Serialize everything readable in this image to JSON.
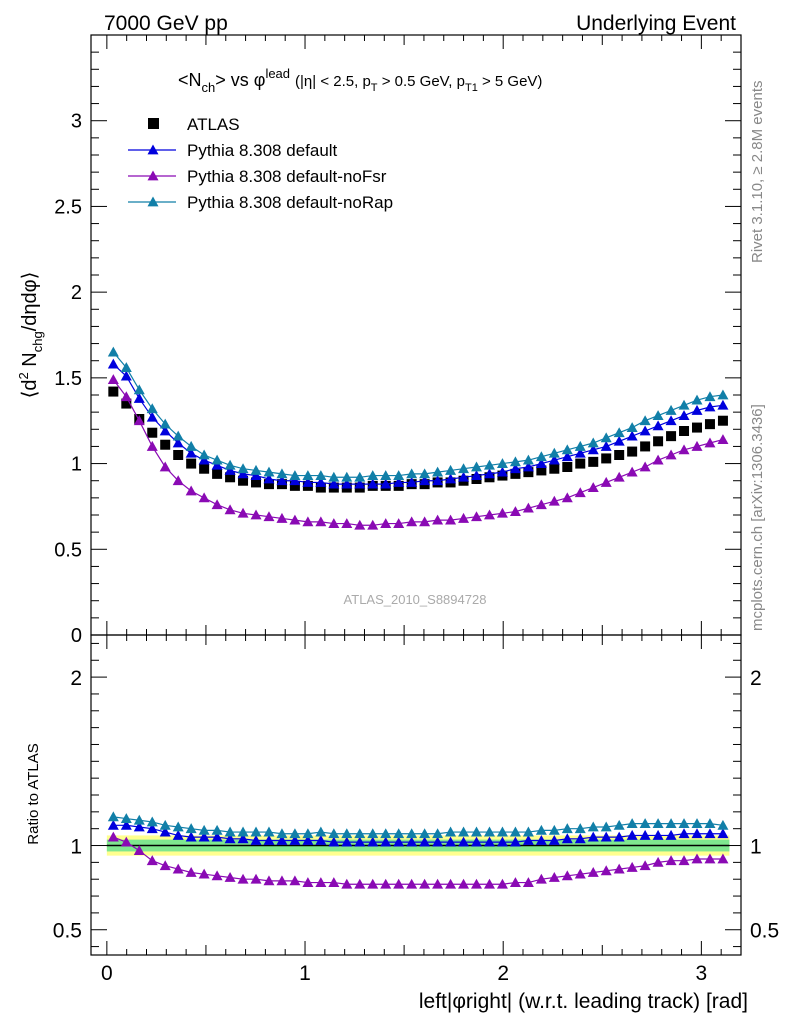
{
  "header": {
    "left": "7000 GeV pp",
    "right": "Underlying Event"
  },
  "side_text": {
    "rivet": "Rivet 3.1.10, ≥ 2.8M events",
    "mcplots": "mcplots.cern.ch [arXiv:1306.3436]"
  },
  "chart_data": {
    "type": "scatter",
    "title": "<Nch> vs φlead (|η| < 2.5, pT > 0.5 GeV, pT1 > 5 GeV)",
    "watermark": "ATLAS_2010_S8894728",
    "ylabel": "⟨d² Nchg/dηdφ⟩",
    "xlabel": "left|φright| (w.r.t. leading track) [rad]",
    "ratio_ylabel": "Ratio to ATLAS",
    "xlim": [
      -0.08,
      3.2
    ],
    "ylim": [
      0,
      3.5
    ],
    "ratio_ylim": [
      0.35,
      2.25
    ],
    "x_ticks": [
      "0",
      "1",
      "2",
      "3"
    ],
    "y_ticks": [
      "0",
      "0.5",
      "1",
      "1.5",
      "2",
      "2.5",
      "3"
    ],
    "ratio_y_ticks": [
      "0.5",
      "1",
      "2"
    ],
    "legend_position": "top-left",
    "x": [
      0.0327,
      0.0982,
      0.1636,
      0.2291,
      0.2945,
      0.36,
      0.4254,
      0.4909,
      0.5563,
      0.6218,
      0.6872,
      0.7527,
      0.8181,
      0.8836,
      0.949,
      1.0145,
      1.0799,
      1.1454,
      1.2108,
      1.2763,
      1.3417,
      1.4072,
      1.4726,
      1.5381,
      1.6035,
      1.669,
      1.7344,
      1.7999,
      1.8653,
      1.9308,
      1.9962,
      2.0617,
      2.1271,
      2.1926,
      2.258,
      2.3235,
      2.3889,
      2.4544,
      2.5198,
      2.5853,
      2.6507,
      2.7162,
      2.7816,
      2.8471,
      2.9125,
      2.978,
      3.0434,
      3.1089
    ],
    "series": [
      {
        "name": "ATLAS",
        "color": "#000000",
        "marker": "square",
        "values": [
          1.42,
          1.35,
          1.26,
          1.18,
          1.11,
          1.05,
          1.0,
          0.97,
          0.94,
          0.92,
          0.9,
          0.89,
          0.88,
          0.88,
          0.87,
          0.87,
          0.86,
          0.86,
          0.86,
          0.86,
          0.87,
          0.87,
          0.87,
          0.88,
          0.88,
          0.89,
          0.89,
          0.9,
          0.91,
          0.92,
          0.93,
          0.94,
          0.95,
          0.96,
          0.97,
          0.98,
          1.0,
          1.01,
          1.03,
          1.05,
          1.07,
          1.1,
          1.13,
          1.16,
          1.19,
          1.21,
          1.23,
          1.25
        ]
      },
      {
        "name": "Pythia 8.308 default",
        "color": "#0000dd",
        "marker": "triangle",
        "values": [
          1.58,
          1.51,
          1.38,
          1.27,
          1.19,
          1.12,
          1.06,
          1.02,
          0.99,
          0.96,
          0.94,
          0.93,
          0.91,
          0.9,
          0.9,
          0.89,
          0.89,
          0.88,
          0.88,
          0.88,
          0.88,
          0.88,
          0.89,
          0.89,
          0.9,
          0.9,
          0.91,
          0.92,
          0.93,
          0.94,
          0.95,
          0.97,
          0.98,
          1.0,
          1.02,
          1.04,
          1.06,
          1.08,
          1.1,
          1.13,
          1.16,
          1.19,
          1.22,
          1.25,
          1.28,
          1.31,
          1.33,
          1.34
        ]
      },
      {
        "name": "Pythia 8.308 default-noFsr",
        "color": "#8a0ab4",
        "marker": "triangle",
        "values": [
          1.49,
          1.39,
          1.25,
          1.1,
          0.98,
          0.9,
          0.84,
          0.8,
          0.76,
          0.73,
          0.71,
          0.7,
          0.69,
          0.68,
          0.67,
          0.66,
          0.66,
          0.65,
          0.65,
          0.64,
          0.64,
          0.65,
          0.65,
          0.66,
          0.66,
          0.67,
          0.67,
          0.68,
          0.69,
          0.7,
          0.71,
          0.72,
          0.74,
          0.76,
          0.78,
          0.8,
          0.83,
          0.86,
          0.89,
          0.92,
          0.95,
          0.98,
          1.02,
          1.05,
          1.08,
          1.1,
          1.12,
          1.14
        ]
      },
      {
        "name": "Pythia 8.308 default-noRap",
        "color": "#117fa8",
        "marker": "triangle",
        "values": [
          1.65,
          1.56,
          1.43,
          1.32,
          1.23,
          1.16,
          1.1,
          1.05,
          1.02,
          0.99,
          0.97,
          0.96,
          0.95,
          0.94,
          0.93,
          0.93,
          0.93,
          0.92,
          0.92,
          0.92,
          0.93,
          0.93,
          0.93,
          0.94,
          0.94,
          0.95,
          0.96,
          0.97,
          0.98,
          0.99,
          1.0,
          1.01,
          1.02,
          1.04,
          1.06,
          1.08,
          1.1,
          1.12,
          1.15,
          1.18,
          1.21,
          1.25,
          1.28,
          1.31,
          1.34,
          1.37,
          1.39,
          1.4
        ]
      }
    ],
    "ratio": {
      "band_colors": {
        "outer": "#ffff8f",
        "inner": "#7fe78f",
        "line": "#000000"
      },
      "series": [
        {
          "name": "Pythia 8.308 default",
          "color": "#0000dd",
          "values": [
            1.12,
            1.12,
            1.11,
            1.1,
            1.08,
            1.06,
            1.05,
            1.05,
            1.05,
            1.04,
            1.04,
            1.03,
            1.03,
            1.03,
            1.03,
            1.03,
            1.03,
            1.02,
            1.02,
            1.02,
            1.02,
            1.02,
            1.02,
            1.02,
            1.02,
            1.02,
            1.02,
            1.02,
            1.02,
            1.02,
            1.02,
            1.02,
            1.03,
            1.03,
            1.03,
            1.04,
            1.04,
            1.05,
            1.05,
            1.05,
            1.06,
            1.06,
            1.06,
            1.06,
            1.07,
            1.07,
            1.07,
            1.07
          ]
        },
        {
          "name": "Pythia 8.308 default-noFsr",
          "color": "#8a0ab4",
          "values": [
            1.05,
            1.02,
            0.97,
            0.91,
            0.88,
            0.86,
            0.84,
            0.83,
            0.82,
            0.81,
            0.8,
            0.8,
            0.79,
            0.79,
            0.79,
            0.78,
            0.78,
            0.78,
            0.77,
            0.77,
            0.77,
            0.77,
            0.77,
            0.77,
            0.77,
            0.77,
            0.77,
            0.77,
            0.77,
            0.77,
            0.77,
            0.78,
            0.78,
            0.8,
            0.81,
            0.82,
            0.83,
            0.84,
            0.85,
            0.86,
            0.87,
            0.88,
            0.9,
            0.91,
            0.91,
            0.92,
            0.92,
            0.92
          ]
        },
        {
          "name": "Pythia 8.308 default-noRap",
          "color": "#117fa8",
          "values": [
            1.17,
            1.16,
            1.15,
            1.14,
            1.12,
            1.11,
            1.1,
            1.09,
            1.09,
            1.08,
            1.08,
            1.08,
            1.08,
            1.07,
            1.07,
            1.07,
            1.08,
            1.07,
            1.07,
            1.07,
            1.07,
            1.07,
            1.07,
            1.07,
            1.07,
            1.07,
            1.08,
            1.08,
            1.08,
            1.08,
            1.08,
            1.08,
            1.08,
            1.09,
            1.09,
            1.1,
            1.1,
            1.11,
            1.11,
            1.12,
            1.13,
            1.13,
            1.13,
            1.13,
            1.13,
            1.13,
            1.13,
            1.12
          ]
        }
      ]
    }
  }
}
